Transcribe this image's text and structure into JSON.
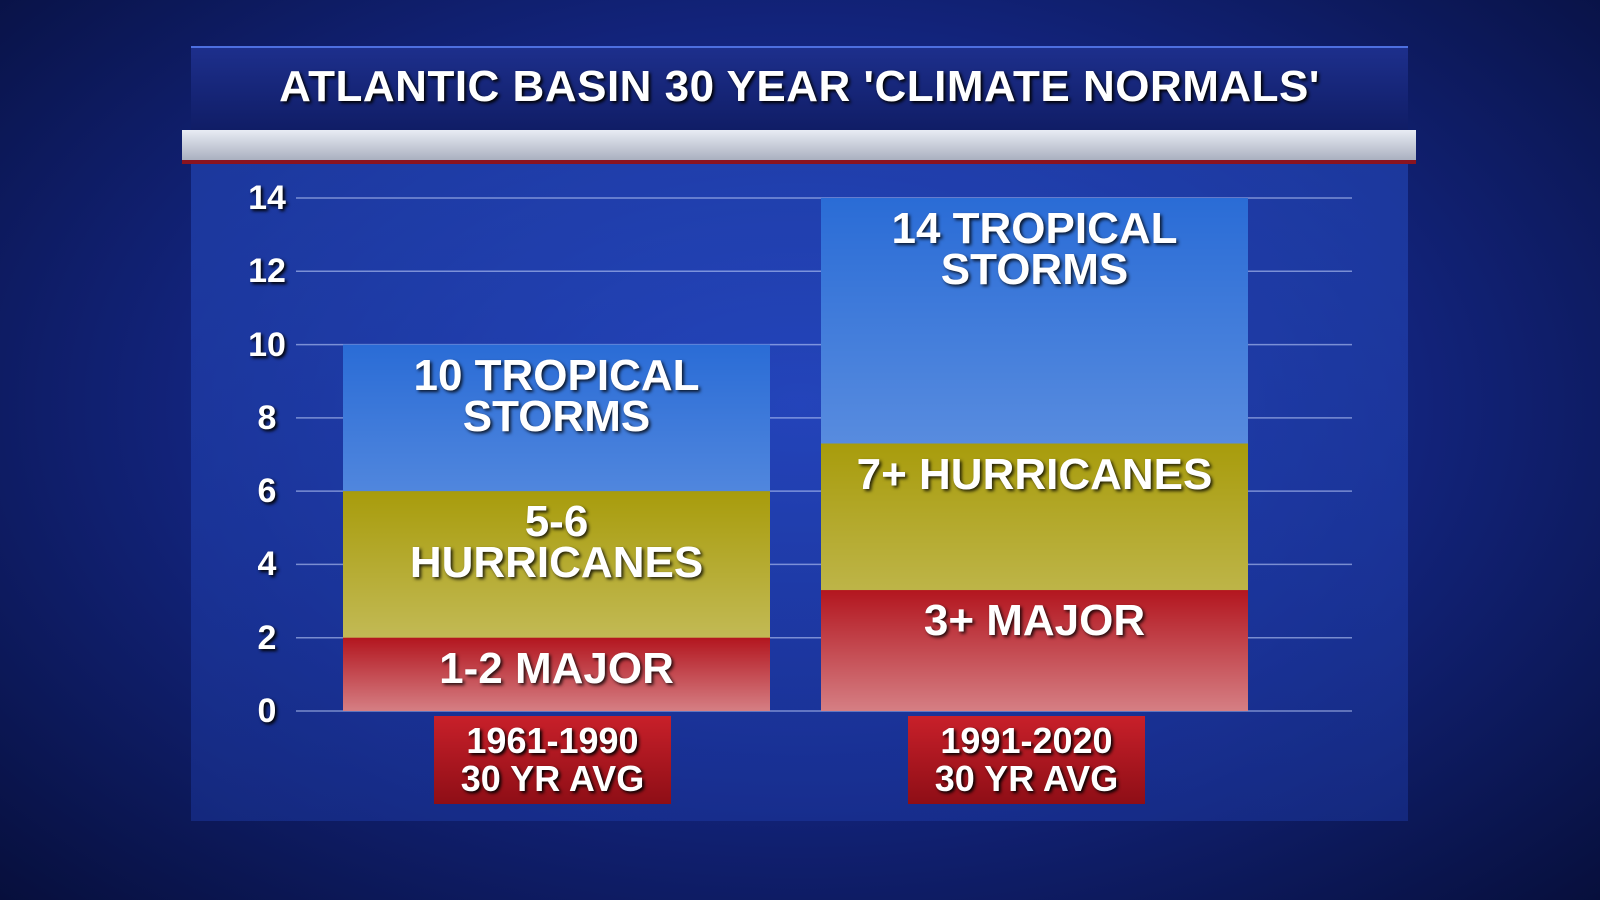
{
  "chart_data": {
    "type": "bar",
    "overlap": true,
    "title": "ATLANTIC BASIN 30 YEAR 'CLIMATE NORMALS'",
    "categories": [
      "1961-1990\n30 YR AVG",
      "1991-2020\n30 YR AVG"
    ],
    "series": [
      {
        "color": "#2a6cd6",
        "values": [
          10,
          14
        ],
        "value_labels": [
          "10 TROPICAL\nSTORMS",
          "14 TROPICAL\nSTORMS"
        ]
      },
      {
        "color": "#a89c0c",
        "values": [
          6,
          7.3
        ],
        "value_labels": [
          "5-6\nHURRICANES",
          "7+ HURRICANES"
        ]
      },
      {
        "color": "#b3161f",
        "values": [
          2,
          3.3
        ],
        "value_labels": [
          "1-2 MAJOR",
          "3+ MAJOR"
        ]
      }
    ],
    "ylim": [
      0,
      14
    ],
    "yticks": [
      0,
      2,
      4,
      6,
      8,
      10,
      12,
      14
    ],
    "grid": true
  }
}
